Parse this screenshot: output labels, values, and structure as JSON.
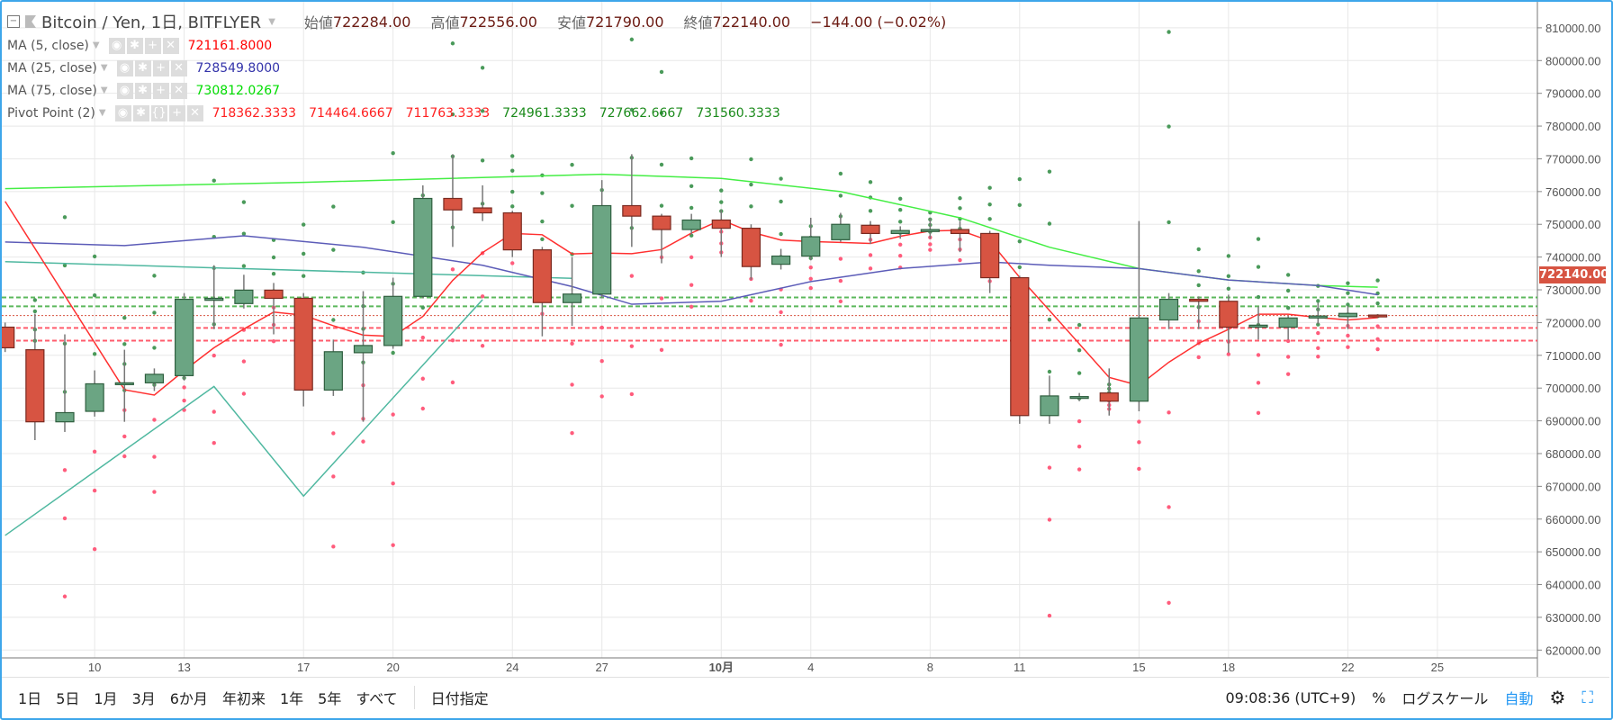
{
  "header": {
    "symbol": "Bitcoin / Yen, 1日, BITFLYER",
    "open_label": "始値",
    "open": "722284.00",
    "high_label": "高値",
    "high": "722556.00",
    "low_label": "安値",
    "low": "721790.00",
    "close_label": "終値",
    "close": "722140.00",
    "change": "−144.00 (−0.02%)"
  },
  "indicators": [
    {
      "name": "MA (5, close)",
      "values": [
        "721161.8000"
      ],
      "color": "#ff0000"
    },
    {
      "name": "MA (25, close)",
      "values": [
        "728549.8000"
      ],
      "color": "#3333aa"
    },
    {
      "name": "MA (75, close)",
      "values": [
        "730812.0267"
      ],
      "color": "#00dd00"
    },
    {
      "name": "Pivot Point (2)",
      "values": [
        "718362.3333",
        "714464.6667",
        "711763.3333",
        "724961.3333",
        "727662.6667",
        "731560.3333"
      ]
    }
  ],
  "price_tag": "722140.00",
  "toolbar": {
    "ranges": [
      "1日",
      "5日",
      "1月",
      "3月",
      "6か月",
      "年初来",
      "1年",
      "5年",
      "すべて"
    ],
    "date_range": "日付指定",
    "time": "09:08:36 (UTC+9)",
    "percent": "%",
    "log_scale": "ログスケール",
    "auto": "自動"
  },
  "colors": {
    "up": "#6ba583",
    "down": "#d75442",
    "ma5": "#ff3030",
    "ma25": "#5c5cb8",
    "ma75": "#44ee44",
    "zigzag": "#4fb8a0",
    "frame": "#3ea6ea"
  },
  "chart_data": {
    "type": "candlestick",
    "title": "Bitcoin / Yen, 1日, BITFLYER",
    "ylim": [
      620000,
      815000
    ],
    "yticks": [
      620000,
      630000,
      640000,
      650000,
      660000,
      670000,
      680000,
      690000,
      700000,
      710000,
      720000,
      730000,
      740000,
      750000,
      760000,
      770000,
      780000,
      790000,
      800000,
      810000
    ],
    "xticks": [
      {
        "label": "10",
        "i": 3
      },
      {
        "label": "13",
        "i": 6
      },
      {
        "label": "17",
        "i": 10
      },
      {
        "label": "20",
        "i": 13
      },
      {
        "label": "24",
        "i": 17
      },
      {
        "label": "27",
        "i": 20
      },
      {
        "label": "10月",
        "i": 24
      },
      {
        "label": "4",
        "i": 27
      },
      {
        "label": "8",
        "i": 31
      },
      {
        "label": "11",
        "i": 34
      },
      {
        "label": "15",
        "i": 38
      },
      {
        "label": "18",
        "i": 41
      },
      {
        "label": "22",
        "i": 45
      },
      {
        "label": "25",
        "i": 48
      }
    ],
    "candles": [
      [
        "09-07",
        718600,
        720000,
        711000,
        712300
      ],
      [
        "09-08",
        711700,
        722700,
        684100,
        689700
      ],
      [
        "09-09",
        689700,
        716400,
        686600,
        692500
      ],
      [
        "09-10",
        692900,
        705400,
        691300,
        701300
      ],
      [
        "09-11",
        701300,
        711700,
        689700,
        701600
      ],
      [
        "09-12",
        701600,
        706000,
        699100,
        704200
      ],
      [
        "09-13",
        703800,
        729000,
        702300,
        727100
      ],
      [
        "09-14",
        726800,
        737500,
        718000,
        727400
      ],
      [
        "09-15",
        725800,
        734600,
        724300,
        729900
      ],
      [
        "09-16",
        729900,
        732100,
        716400,
        727400
      ],
      [
        "09-17",
        727400,
        729000,
        694400,
        699400
      ],
      [
        "09-18",
        699400,
        714800,
        697600,
        711100
      ],
      [
        "09-19",
        710800,
        729600,
        689700,
        713000
      ],
      [
        "09-20",
        713000,
        733700,
        712000,
        728000
      ],
      [
        "09-21",
        728000,
        761900,
        727400,
        757900
      ],
      [
        "09-22",
        757900,
        771400,
        743100,
        754400
      ],
      [
        "09-23",
        755000,
        761900,
        751000,
        753500
      ],
      [
        "09-24",
        753500,
        754100,
        740000,
        742200
      ],
      [
        "09-25",
        742200,
        743100,
        715800,
        726100
      ],
      [
        "09-26",
        726100,
        740000,
        719000,
        728700
      ],
      [
        "09-27",
        728700,
        763500,
        727400,
        755700
      ],
      [
        "09-28",
        755700,
        771400,
        743100,
        752500
      ],
      [
        "09-29",
        752500,
        753200,
        738100,
        748400
      ],
      [
        "09-30",
        748400,
        753200,
        746900,
        751300
      ],
      [
        "10-01",
        751300,
        754400,
        740000,
        748800
      ],
      [
        "10-02",
        748800,
        750000,
        733100,
        737100
      ],
      [
        "10-03",
        737800,
        742500,
        736200,
        740300
      ],
      [
        "10-04",
        740300,
        752000,
        739000,
        746200
      ],
      [
        "10-05",
        745300,
        753500,
        744700,
        750000
      ],
      [
        "10-06",
        749700,
        751000,
        744000,
        747200
      ],
      [
        "10-07",
        747200,
        749400,
        745600,
        748100
      ],
      [
        "10-08",
        747800,
        751900,
        745600,
        748400
      ],
      [
        "10-09",
        748400,
        751000,
        741500,
        747200
      ],
      [
        "10-10",
        747200,
        748000,
        729000,
        733700
      ],
      [
        "10-11",
        733700,
        734300,
        689100,
        691600
      ],
      [
        "10-12",
        691600,
        703800,
        689100,
        697600
      ],
      [
        "10-13",
        697200,
        698500,
        696000,
        697400
      ],
      [
        "10-14",
        698500,
        706000,
        691600,
        696000
      ],
      [
        "10-15",
        696000,
        751000,
        692900,
        721400
      ],
      [
        "10-16",
        720800,
        729000,
        718000,
        727100
      ],
      [
        "10-17",
        727100,
        728000,
        718000,
        726500
      ],
      [
        "10-18",
        726500,
        728500,
        710800,
        718600
      ],
      [
        "10-19",
        718600,
        724900,
        714800,
        719200
      ],
      [
        "10-20",
        718600,
        722000,
        714800,
        721400
      ],
      [
        "10-21",
        721400,
        726000,
        719500,
        722000
      ],
      [
        "10-22",
        721800,
        725000,
        718000,
        722800
      ],
      [
        "10-23",
        722284,
        722556,
        721790,
        722140
      ]
    ],
    "ma25": [
      [
        0,
        744600
      ],
      [
        4,
        743500
      ],
      [
        8,
        746500
      ],
      [
        12,
        743000
      ],
      [
        16,
        737500
      ],
      [
        19,
        731000
      ],
      [
        21,
        725600
      ],
      [
        24,
        726500
      ],
      [
        27,
        732500
      ],
      [
        30,
        736500
      ],
      [
        33,
        738500
      ],
      [
        35,
        737500
      ],
      [
        38,
        736500
      ],
      [
        41,
        733000
      ],
      [
        44,
        731300
      ],
      [
        46,
        728500
      ]
    ],
    "ma75": [
      [
        0,
        760900
      ],
      [
        10,
        762800
      ],
      [
        20,
        765300
      ],
      [
        24,
        764000
      ],
      [
        28,
        760000
      ],
      [
        32,
        752000
      ],
      [
        35,
        743000
      ],
      [
        38,
        736500
      ],
      [
        41,
        733000
      ],
      [
        44,
        731300
      ],
      [
        46,
        730800
      ]
    ],
    "zigzag": [
      [
        0,
        655000
      ],
      [
        7,
        700500
      ],
      [
        10,
        667000
      ],
      [
        16,
        727000
      ]
    ],
    "pivot_level_line": [
      [
        0,
        738600
      ],
      [
        19,
        733500
      ]
    ],
    "pivot_lines": {
      "resistance": [
        727662.6667,
        724961.3333
      ],
      "support": [
        718362.3333,
        714464.6667
      ]
    },
    "last_price": 722140
  }
}
